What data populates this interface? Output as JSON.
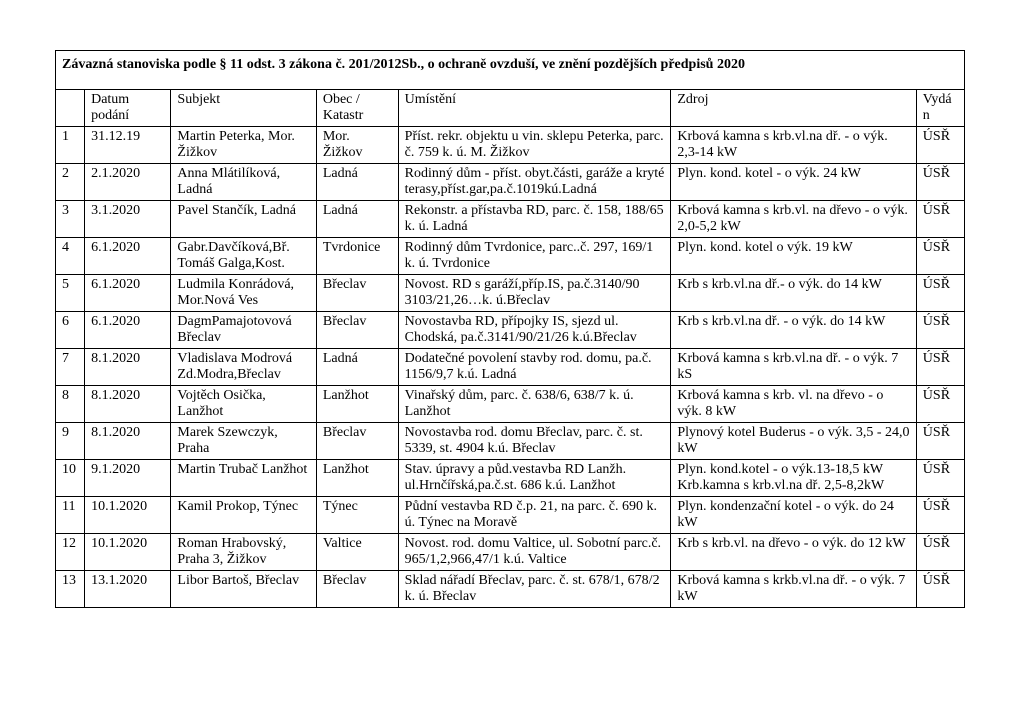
{
  "title": "Závazná stanoviska podle § 11 odst. 3 zákona č. 201/2012Sb., o ochraně ovzduší, ve znění pozdějších předpisů 2020",
  "columns": [
    "",
    "Datum podání",
    "Subjekt",
    "Obec / Katastr",
    "Umístění",
    "Zdroj",
    "Vydán"
  ],
  "rows": [
    [
      "1",
      "31.12.19",
      "Martin Peterka, Mor. Žižkov",
      "Mor. Žižkov",
      "Příst. rekr. objektu u vin. sklepu Peterka, parc. č. 759 k. ú. M. Žižkov",
      "Krbová kamna s krb.vl.na dř. - o výk. 2,3-14 kW",
      "ÚSŘ"
    ],
    [
      "2",
      "2.1.2020",
      "Anna Mlátilíková, Ladná",
      "Ladná",
      "Rodinný dům - příst. obyt.části, garáže a kryté terasy,příst.gar,pa.č.1019kú.Ladná",
      "Plyn. kond. kotel - o výk. 24 kW",
      "ÚSŘ"
    ],
    [
      "3",
      "3.1.2020",
      "Pavel Stančík, Ladná",
      "Ladná",
      "Rekonstr. a přístavba RD, parc. č. 158, 188/65 k. ú. Ladná",
      "Krbová kamna s krb.vl. na dřevo - o výk. 2,0-5,2 kW",
      "ÚSŘ"
    ],
    [
      "4",
      "6.1.2020",
      "Gabr.Davčíková,Bř. Tomáš Galga,Kost.",
      "Tvrdonice",
      "Rodinný dům Tvrdonice, parc..č. 297, 169/1 k. ú. Tvrdonice",
      "Plyn. kond. kotel  o výk. 19 kW",
      "ÚSŘ"
    ],
    [
      "5",
      "6.1.2020",
      "Ludmila Konrádová, Mor.Nová Ves",
      "Břeclav",
      "Novost. RD s garáží,příp.IS, pa.č.3140/90 3103/21,26…k. ú.Břeclav",
      "Krb s krb.vl.na dř.- o výk. do 14 kW",
      "ÚSŘ"
    ],
    [
      "6",
      "6.1.2020",
      "DagmPamajotovová Břeclav",
      "Břeclav",
      "Novostavba RD, přípojky IS, sjezd ul. Chodská, pa.č.3141/90/21/26 k.ú.Břeclav",
      "Krb s krb.vl.na dř. - o výk. do 14 kW",
      "ÚSŘ"
    ],
    [
      "7",
      "8.1.2020",
      "Vladislava Modrová Zd.Modra,Břeclav",
      "Ladná",
      "Dodatečné povolení stavby rod. domu, pa.č. 1156/9,7 k.ú. Ladná",
      "Krbová kamna s krb.vl.na dř. - o výk. 7 kS",
      "ÚSŘ"
    ],
    [
      "8",
      "8.1.2020",
      "Vojtěch Osička, Lanžhot",
      "Lanžhot",
      "Vinařský dům, parc. č. 638/6, 638/7 k. ú. Lanžhot",
      "Krbová kamna s krb. vl. na dřevo - o výk. 8 kW",
      "ÚSŘ"
    ],
    [
      "9",
      "8.1.2020",
      "Marek Szewczyk, Praha",
      "Břeclav",
      "Novostavba rod. domu Břeclav, parc. č. st. 5339, st. 4904 k.ú. Břeclav",
      "Plynový kotel Buderus - o výk. 3,5 - 24,0 kW",
      "ÚSŘ"
    ],
    [
      "10",
      "9.1.2020",
      "Martin Trubač Lanžhot",
      "Lanžhot",
      "Stav. úpravy a půd.vestavba RD Lanžh. ul.Hrnčířská,pa.č.st. 686 k.ú. Lanžhot",
      "Plyn. kond.kotel - o výk.13-18,5 kW Krb.kamna s krb.vl.na dř. 2,5-8,2kW",
      "ÚSŘ"
    ],
    [
      "11",
      "10.1.2020",
      "Kamil Prokop, Týnec",
      "Týnec",
      "Půdní vestavba RD č.p. 21, na parc. č. 690 k. ú. Týnec na Moravě",
      "Plyn. kondenzační kotel - o výk. do 24 kW",
      "ÚSŘ"
    ],
    [
      "12",
      "10.1.2020",
      "Roman Hrabovský, Praha 3, Žižkov",
      "Valtice",
      "Novost. rod. domu Valtice, ul. Sobotní parc.č. 965/1,2,966,47/1 k.ú. Valtice",
      "Krb s krb.vl. na dřevo - o výk. do 12 kW",
      "ÚSŘ"
    ],
    [
      "13",
      "13.1.2020",
      "Libor Bartoš, Břeclav",
      "Břeclav",
      "Sklad nářadí Břeclav, parc. č. st. 678/1, 678/2 k. ú. Břeclav",
      "Krbová kamna s krkb.vl.na dř. - o výk. 7 kW",
      "ÚSŘ"
    ]
  ]
}
